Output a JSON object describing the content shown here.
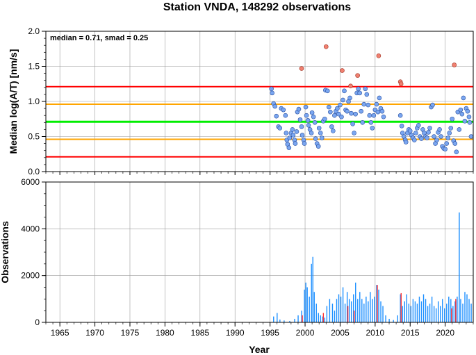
{
  "title": "Station VNDA, 148292 observations",
  "colors": {
    "median_line": "#00ee00",
    "smad_line": "#ffa500",
    "outlier_line": "#ff0000",
    "point_fill": "#7aa6f0",
    "outlier_fill": "#f08070",
    "bar_normal": "#1e90ff",
    "bar_outlier": "#ff3030",
    "grid": "#999999"
  },
  "chart_data": [
    {
      "type": "scatter",
      "ylabel": "Median log(A/T) [nm/s]",
      "annotation": "median = 0.71, smad = 0.25",
      "xlim": [
        1963,
        2024
      ],
      "ylim": [
        0.0,
        2.0
      ],
      "yticks": [
        "0.0",
        "0.5",
        "1.0",
        "1.5",
        "2.0"
      ],
      "median": 0.71,
      "smad": 0.25,
      "hlines": [
        {
          "y": 1.21,
          "role": "outlier"
        },
        {
          "y": 0.96,
          "role": "smad"
        },
        {
          "y": 0.71,
          "role": "median"
        },
        {
          "y": 0.46,
          "role": "smad"
        },
        {
          "y": 0.21,
          "role": "outlier"
        }
      ],
      "points": [
        [
          1995.2,
          1.18
        ],
        [
          1995.3,
          1.12
        ],
        [
          1995.5,
          0.97
        ],
        [
          1995.7,
          0.93
        ],
        [
          1995.9,
          0.79
        ],
        [
          1996.2,
          0.64
        ],
        [
          1996.4,
          0.62
        ],
        [
          1996.6,
          0.9
        ],
        [
          1996.9,
          0.88
        ],
        [
          1997.2,
          0.8
        ],
        [
          1997.3,
          0.55
        ],
        [
          1997.4,
          0.45
        ],
        [
          1997.5,
          0.39
        ],
        [
          1997.7,
          0.34
        ],
        [
          1997.8,
          0.48
        ],
        [
          1998.0,
          0.55
        ],
        [
          1998.2,
          0.6
        ],
        [
          1998.3,
          0.52
        ],
        [
          1998.5,
          0.45
        ],
        [
          1998.6,
          0.4
        ],
        [
          1998.8,
          0.57
        ],
        [
          1998.9,
          0.85
        ],
        [
          1999.1,
          0.89
        ],
        [
          1999.3,
          0.74
        ],
        [
          1999.5,
          0.64
        ],
        [
          1999.6,
          0.52
        ],
        [
          1999.8,
          0.45
        ],
        [
          1999.9,
          0.4
        ],
        [
          2000.1,
          0.92
        ],
        [
          2000.2,
          0.8
        ],
        [
          2000.4,
          0.73
        ],
        [
          2000.5,
          0.66
        ],
        [
          2000.7,
          0.6
        ],
        [
          2000.9,
          0.55
        ],
        [
          2001.0,
          0.84
        ],
        [
          2001.2,
          0.78
        ],
        [
          2001.4,
          0.7
        ],
        [
          2001.5,
          0.47
        ],
        [
          2001.7,
          0.4
        ],
        [
          2001.9,
          0.36
        ],
        [
          2002.0,
          0.62
        ],
        [
          2002.2,
          0.55
        ],
        [
          2002.4,
          0.48
        ],
        [
          2002.6,
          0.72
        ],
        [
          2002.8,
          0.75
        ],
        [
          2002.9,
          1.16
        ],
        [
          2003.2,
          1.15
        ],
        [
          2003.4,
          0.92
        ],
        [
          2003.6,
          0.85
        ],
        [
          2003.8,
          0.64
        ],
        [
          2004.0,
          0.58
        ],
        [
          2004.2,
          0.8
        ],
        [
          2004.4,
          0.86
        ],
        [
          2004.6,
          0.9
        ],
        [
          2004.8,
          0.82
        ],
        [
          2005.0,
          0.95
        ],
        [
          2005.2,
          0.78
        ],
        [
          2005.4,
          1.02
        ],
        [
          2005.6,
          1.15
        ],
        [
          2005.8,
          0.88
        ],
        [
          2006.0,
          0.86
        ],
        [
          2006.2,
          1.0
        ],
        [
          2006.4,
          1.05
        ],
        [
          2006.6,
          0.83
        ],
        [
          2006.8,
          0.68
        ],
        [
          2007.0,
          0.55
        ],
        [
          2007.2,
          0.82
        ],
        [
          2007.4,
          1.12
        ],
        [
          2007.6,
          1.18
        ],
        [
          2007.8,
          1.12
        ],
        [
          2008.0,
          0.86
        ],
        [
          2008.2,
          0.7
        ],
        [
          2008.4,
          0.96
        ],
        [
          2008.6,
          1.18
        ],
        [
          2008.8,
          1.1
        ],
        [
          2009.0,
          0.95
        ],
        [
          2009.2,
          0.8
        ],
        [
          2009.4,
          0.7
        ],
        [
          2009.6,
          0.62
        ],
        [
          2009.8,
          0.8
        ],
        [
          2010.0,
          0.88
        ],
        [
          2010.2,
          0.96
        ],
        [
          2010.4,
          0.85
        ],
        [
          2010.6,
          1.05
        ],
        [
          2010.8,
          0.9
        ],
        [
          2011.0,
          0.86
        ],
        [
          2011.2,
          0.78
        ],
        [
          2013.6,
          0.8
        ],
        [
          2013.8,
          0.65
        ],
        [
          2013.9,
          0.55
        ],
        [
          2014.1,
          0.5
        ],
        [
          2014.3,
          0.45
        ],
        [
          2014.4,
          0.42
        ],
        [
          2014.6,
          0.55
        ],
        [
          2014.8,
          0.6
        ],
        [
          2015.0,
          0.58
        ],
        [
          2015.2,
          0.52
        ],
        [
          2015.4,
          0.48
        ],
        [
          2015.6,
          0.45
        ],
        [
          2015.8,
          0.55
        ],
        [
          2016.0,
          0.62
        ],
        [
          2016.2,
          0.66
        ],
        [
          2016.4,
          0.5
        ],
        [
          2016.6,
          0.47
        ],
        [
          2016.8,
          0.6
        ],
        [
          2017.0,
          0.55
        ],
        [
          2017.2,
          0.5
        ],
        [
          2017.4,
          0.48
        ],
        [
          2017.6,
          0.56
        ],
        [
          2017.8,
          0.62
        ],
        [
          2018.0,
          0.92
        ],
        [
          2018.2,
          0.95
        ],
        [
          2018.4,
          0.5
        ],
        [
          2018.6,
          0.4
        ],
        [
          2018.8,
          0.45
        ],
        [
          2019.0,
          0.56
        ],
        [
          2019.2,
          0.6
        ],
        [
          2019.4,
          0.5
        ],
        [
          2019.6,
          0.36
        ],
        [
          2019.8,
          0.33
        ],
        [
          2020.0,
          0.32
        ],
        [
          2020.2,
          0.4
        ],
        [
          2020.4,
          0.48
        ],
        [
          2020.6,
          0.55
        ],
        [
          2020.8,
          0.62
        ],
        [
          2021.0,
          0.75
        ],
        [
          2021.2,
          0.44
        ],
        [
          2021.4,
          0.4
        ],
        [
          2021.6,
          0.28
        ],
        [
          2021.8,
          0.85
        ],
        [
          2022.0,
          0.6
        ],
        [
          2022.2,
          0.88
        ],
        [
          2022.4,
          0.82
        ],
        [
          2022.6,
          1.05
        ],
        [
          2022.8,
          0.72
        ],
        [
          2023.0,
          0.9
        ],
        [
          2023.2,
          0.86
        ],
        [
          2023.4,
          0.78
        ],
        [
          2023.5,
          0.7
        ],
        [
          2023.7,
          0.5
        ]
      ],
      "outliers": [
        [
          1999.5,
          1.47
        ],
        [
          2003.0,
          1.78
        ],
        [
          2005.3,
          1.44
        ],
        [
          2006.5,
          1.22
        ],
        [
          2007.5,
          1.37
        ],
        [
          2010.5,
          1.65
        ],
        [
          2013.6,
          1.28
        ],
        [
          2013.7,
          1.25
        ],
        [
          2021.3,
          1.52
        ]
      ]
    },
    {
      "type": "bar",
      "xlabel": "Year",
      "ylabel": "Observations",
      "xlim": [
        1963,
        2024
      ],
      "ylim": [
        0,
        6000
      ],
      "yticks": [
        "0",
        "2000",
        "4000",
        "6000"
      ],
      "xticks": [
        "1965",
        "1970",
        "1975",
        "1980",
        "1985",
        "1990",
        "1995",
        "2000",
        "2005",
        "2010",
        "2015",
        "2020"
      ],
      "bars": [
        [
          1995.5,
          250
        ],
        [
          1996.0,
          400
        ],
        [
          1996.4,
          120
        ],
        [
          1997.0,
          80
        ],
        [
          1997.8,
          60
        ],
        [
          1998.5,
          150
        ],
        [
          1999.0,
          300
        ],
        [
          1999.5,
          500
        ],
        [
          1999.9,
          1400
        ],
        [
          2000.1,
          1700
        ],
        [
          2000.3,
          1500
        ],
        [
          2000.6,
          1100
        ],
        [
          2000.9,
          2500
        ],
        [
          2001.1,
          2800
        ],
        [
          2001.3,
          1300
        ],
        [
          2001.6,
          800
        ],
        [
          2001.9,
          400
        ],
        [
          2002.2,
          300
        ],
        [
          2002.5,
          250
        ],
        [
          2002.8,
          200
        ],
        [
          2003.1,
          700
        ],
        [
          2003.5,
          1000
        ],
        [
          2003.9,
          800
        ],
        [
          2004.2,
          500
        ],
        [
          2004.5,
          1000
        ],
        [
          2004.8,
          1200
        ],
        [
          2005.1,
          1100
        ],
        [
          2005.4,
          1500
        ],
        [
          2005.7,
          800
        ],
        [
          2006.0,
          1300
        ],
        [
          2006.3,
          1000
        ],
        [
          2006.6,
          900
        ],
        [
          2006.9,
          1200
        ],
        [
          2007.2,
          1700
        ],
        [
          2007.5,
          1000
        ],
        [
          2007.8,
          1300
        ],
        [
          2008.1,
          1000
        ],
        [
          2008.4,
          800
        ],
        [
          2008.7,
          1100
        ],
        [
          2009.0,
          900
        ],
        [
          2009.3,
          1300
        ],
        [
          2009.6,
          1000
        ],
        [
          2009.9,
          1100
        ],
        [
          2010.2,
          1600
        ],
        [
          2010.5,
          1400
        ],
        [
          2010.8,
          900
        ],
        [
          2011.1,
          700
        ],
        [
          2011.5,
          300
        ],
        [
          2012.0,
          150
        ],
        [
          2012.6,
          100
        ],
        [
          2013.2,
          300
        ],
        [
          2013.6,
          1200
        ],
        [
          2013.9,
          700
        ],
        [
          2014.2,
          900
        ],
        [
          2014.5,
          1200
        ],
        [
          2014.8,
          800
        ],
        [
          2015.1,
          700
        ],
        [
          2015.4,
          1000
        ],
        [
          2015.7,
          900
        ],
        [
          2016.0,
          800
        ],
        [
          2016.3,
          1100
        ],
        [
          2016.6,
          900
        ],
        [
          2016.9,
          1200
        ],
        [
          2017.2,
          1000
        ],
        [
          2017.5,
          700
        ],
        [
          2017.8,
          800
        ],
        [
          2018.1,
          1100
        ],
        [
          2018.4,
          700
        ],
        [
          2018.7,
          600
        ],
        [
          2019.0,
          900
        ],
        [
          2019.3,
          700
        ],
        [
          2019.6,
          1000
        ],
        [
          2019.9,
          600
        ],
        [
          2020.2,
          800
        ],
        [
          2020.5,
          1100
        ],
        [
          2020.8,
          1000
        ],
        [
          2021.1,
          700
        ],
        [
          2021.4,
          900
        ],
        [
          2021.7,
          1100
        ],
        [
          2022.0,
          4700
        ],
        [
          2022.2,
          1000
        ],
        [
          2022.5,
          800
        ],
        [
          2022.8,
          1300
        ],
        [
          2023.1,
          1200
        ],
        [
          2023.4,
          1000
        ],
        [
          2023.7,
          800
        ]
      ],
      "outlier_bars": [
        [
          1999.6,
          300
        ],
        [
          2002.6,
          400
        ],
        [
          2006.1,
          700
        ],
        [
          2007.0,
          500
        ],
        [
          2010.3,
          1600
        ],
        [
          2013.7,
          1250
        ],
        [
          2020.9,
          600
        ],
        [
          2021.5,
          1000
        ]
      ]
    }
  ]
}
